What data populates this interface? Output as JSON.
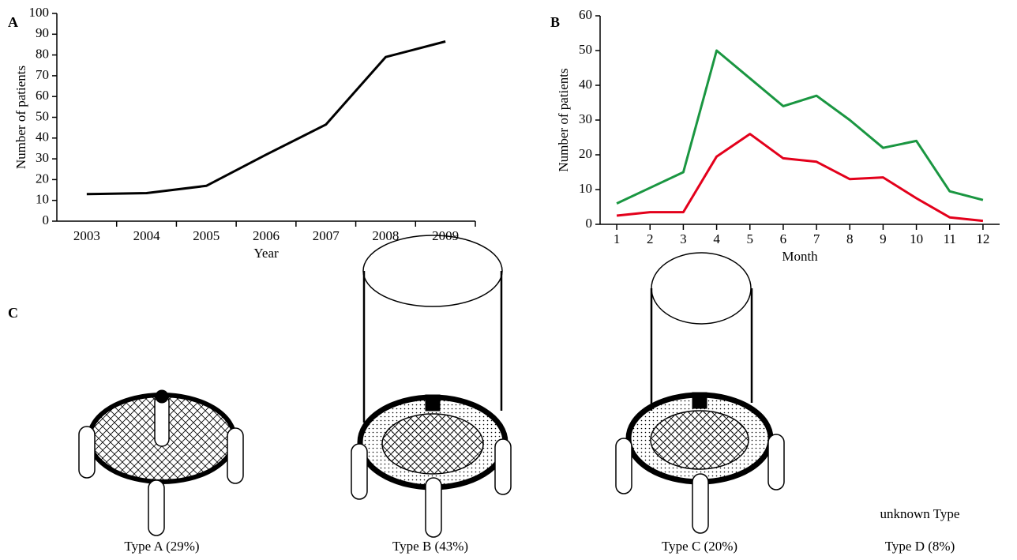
{
  "chart_data": [
    {
      "type": "line",
      "panel_label": "A",
      "x_label": "Year",
      "y_label": "Number of patients",
      "categories": [
        "2003",
        "2004",
        "2005",
        "2006",
        "2007",
        "2008",
        "2009"
      ],
      "series": [
        {
          "color": "#000000",
          "values": [
            13,
            13.5,
            17,
            32,
            46.5,
            79,
            86.5
          ]
        }
      ],
      "ylim": [
        0,
        100
      ],
      "yticks": [
        0,
        10,
        20,
        30,
        40,
        50,
        60,
        70,
        80,
        90,
        100
      ],
      "x_ticks_between": true
    },
    {
      "type": "line",
      "panel_label": "B",
      "x_label": "Month",
      "y_label": "Number of patients",
      "categories": [
        "1",
        "2",
        "3",
        "4",
        "5",
        "6",
        "7",
        "8",
        "9",
        "10",
        "11",
        "12"
      ],
      "series": [
        {
          "color": "#1a9641",
          "values": [
            6,
            10.5,
            15,
            50,
            42,
            34,
            37,
            30,
            22,
            24,
            9.5,
            7
          ]
        },
        {
          "color": "#e3001b",
          "values": [
            2.5,
            3.5,
            3.5,
            19.5,
            26,
            19,
            18,
            13,
            13.5,
            7.5,
            2,
            1
          ]
        }
      ],
      "ylim": [
        0,
        60
      ],
      "yticks": [
        0,
        10,
        20,
        30,
        40,
        50,
        60
      ],
      "x_ticks_between": false
    }
  ],
  "panel_c": {
    "panel_label": "C",
    "types": [
      "Type A (29%)",
      "Type B (43%)",
      "Type C (20%)",
      "Type D (8%)"
    ],
    "unknown_note": "unknown Type"
  }
}
